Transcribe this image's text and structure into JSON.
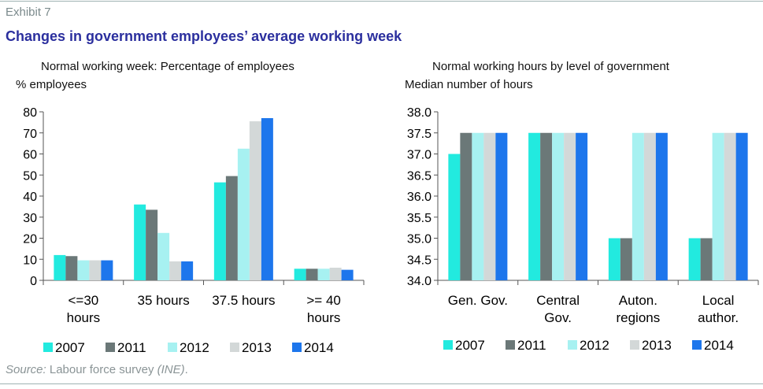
{
  "header": {
    "exhibit": "Exhibit 7",
    "title": "Changes in government employees’ average working week"
  },
  "source": {
    "label": "Source:",
    "text": " Labour force survey ",
    "italic_part": "(INE)",
    "end": "."
  },
  "colors": {
    "2007": "#22eadf",
    "2011": "#6b7878",
    "2012": "#a7f1f1",
    "2013": "#d3d8d8",
    "2014": "#1d76ec",
    "rule": "#9fb3b3",
    "title": "#2b2f9e"
  },
  "chart_data": [
    {
      "type": "bar",
      "title": "Normal working week: Percentage of employees",
      "ylabel": "% employees",
      "xlabel": "",
      "ylim": [
        0,
        80
      ],
      "yticks": [
        0,
        10,
        20,
        30,
        40,
        50,
        60,
        70,
        80
      ],
      "ytick_decimals": 0,
      "categories": [
        [
          "<=30",
          "hours"
        ],
        [
          "35 hours"
        ],
        [
          "37.5 hours"
        ],
        [
          ">= 40",
          "hours"
        ]
      ],
      "series": [
        {
          "name": "2007",
          "values": [
            12,
            36,
            46.5,
            5.5
          ]
        },
        {
          "name": "2011",
          "values": [
            11.5,
            33.5,
            49.5,
            5.5
          ]
        },
        {
          "name": "2012",
          "values": [
            9.5,
            22.5,
            62.5,
            5.5
          ]
        },
        {
          "name": "2013",
          "values": [
            9.5,
            9,
            75.5,
            6
          ]
        },
        {
          "name": "2014",
          "values": [
            9.5,
            9,
            77,
            5
          ]
        }
      ],
      "legend": "bottom"
    },
    {
      "type": "bar",
      "title": "Normal working hours by level of government",
      "ylabel": "Median number of hours",
      "xlabel": "",
      "ylim": [
        34.0,
        38.0
      ],
      "yticks": [
        34.0,
        34.5,
        35.0,
        35.5,
        36.0,
        36.5,
        37.0,
        37.5,
        38.0
      ],
      "ytick_decimals": 1,
      "categories": [
        [
          "Gen. Gov."
        ],
        [
          "Central",
          "Gov."
        ],
        [
          "Auton.",
          "regions"
        ],
        [
          "Local",
          "author."
        ]
      ],
      "series": [
        {
          "name": "2007",
          "values": [
            37.0,
            37.5,
            35.0,
            35.0
          ]
        },
        {
          "name": "2011",
          "values": [
            37.5,
            37.5,
            35.0,
            35.0
          ]
        },
        {
          "name": "2012",
          "values": [
            37.5,
            37.5,
            37.5,
            37.5
          ]
        },
        {
          "name": "2013",
          "values": [
            37.5,
            37.5,
            37.5,
            37.5
          ]
        },
        {
          "name": "2014",
          "values": [
            37.5,
            37.5,
            37.5,
            37.5
          ]
        }
      ],
      "legend": "bottom"
    }
  ]
}
